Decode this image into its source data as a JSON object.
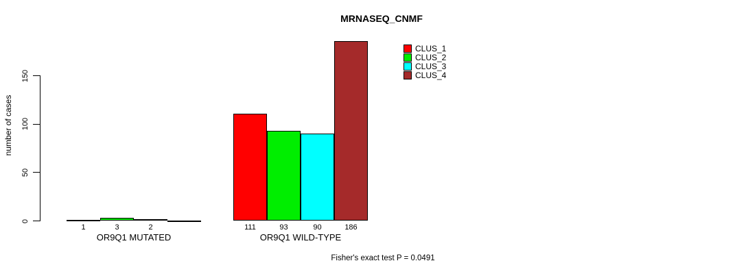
{
  "title": "MRNASEQ_CNMF",
  "footer": "Fisher's exact test P = 0.0491",
  "chart_data": {
    "type": "bar",
    "title": "MRNASEQ_CNMF",
    "xlabel": "",
    "ylabel": "number of cases",
    "ylim": [
      0,
      186
    ],
    "yticks": [
      0,
      50,
      100,
      150
    ],
    "grid": false,
    "legend_position": "top-right",
    "categories": [
      "OR9Q1 MUTATED",
      "OR9Q1 WILD-TYPE"
    ],
    "series": [
      {
        "name": "CLUS_1",
        "color": "#ff0000",
        "values": [
          1,
          111
        ]
      },
      {
        "name": "CLUS_2",
        "color": "#00ee00",
        "values": [
          3,
          93
        ]
      },
      {
        "name": "CLUS_3",
        "color": "#00ffff",
        "values": [
          2,
          90
        ]
      },
      {
        "name": "CLUS_4",
        "color": "#a52a2a",
        "values": [
          0,
          186
        ]
      }
    ],
    "bar_value_labels": [
      [
        "1",
        "3",
        "2",
        ""
      ],
      [
        "111",
        "93",
        "90",
        "186"
      ]
    ],
    "annotation": "Fisher's exact test P = 0.0491"
  }
}
